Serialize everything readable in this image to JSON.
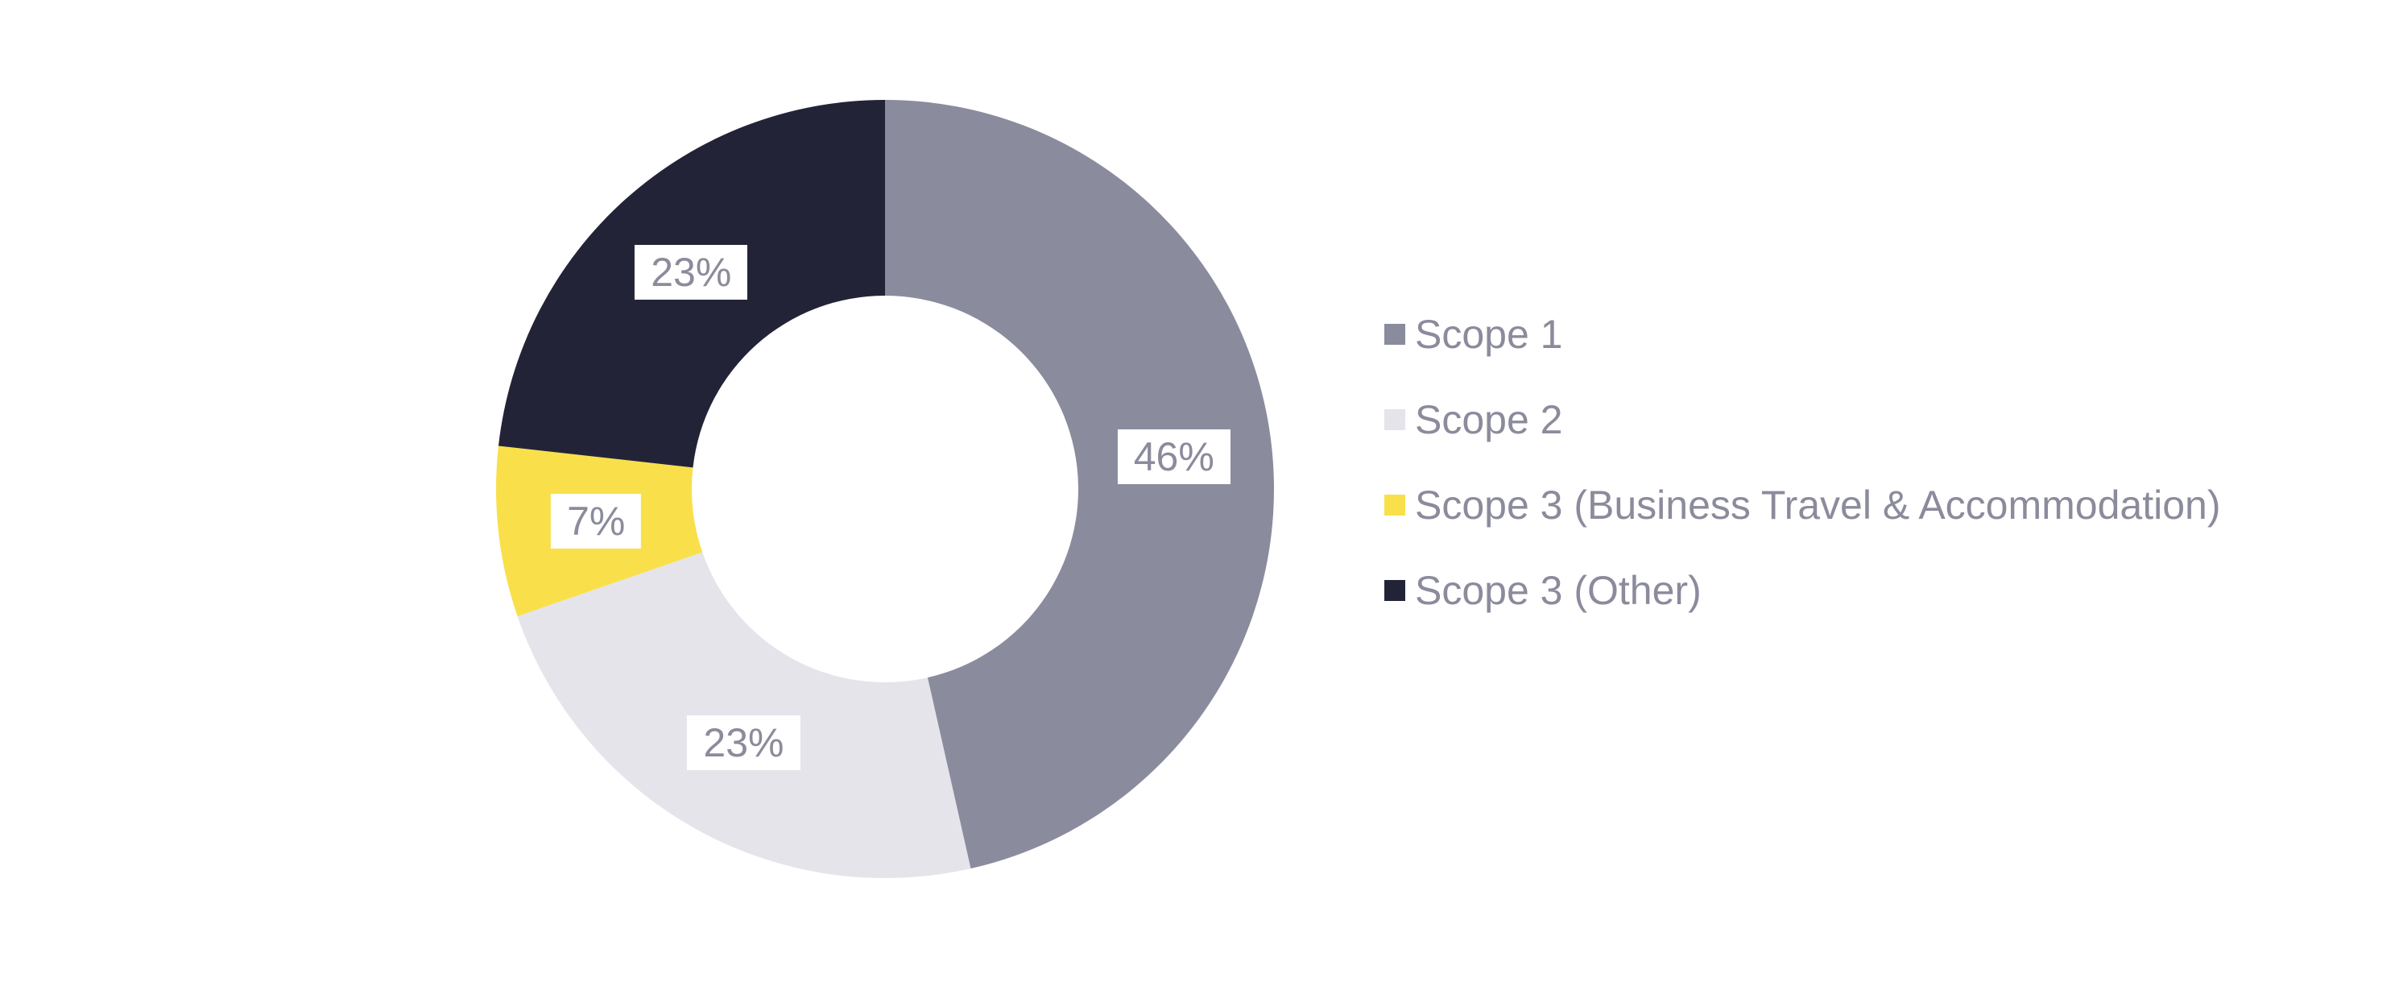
{
  "chart_data": {
    "type": "pie",
    "variant": "donut",
    "series": [
      {
        "name": "Scope 1",
        "value": 46,
        "label": "46%",
        "color": "#8B8B9E"
      },
      {
        "name": "Scope 2",
        "value": 23,
        "label": "23%",
        "color": "#E4E4EA"
      },
      {
        "name": "Scope 3 (Business Travel & Accommodation)",
        "value": 7,
        "label": "7%",
        "color": "#F9E04A"
      },
      {
        "name": "Scope 3 (Other)",
        "value": 23,
        "label": "23%",
        "color": "#232338"
      }
    ],
    "title": "",
    "legend_position": "right",
    "legend_text_color": "#8B8B9C",
    "slice_label_text_color": "#8B8B9C",
    "slice_label_bg": "#FFFFFF",
    "background": "#FFFFFF"
  }
}
